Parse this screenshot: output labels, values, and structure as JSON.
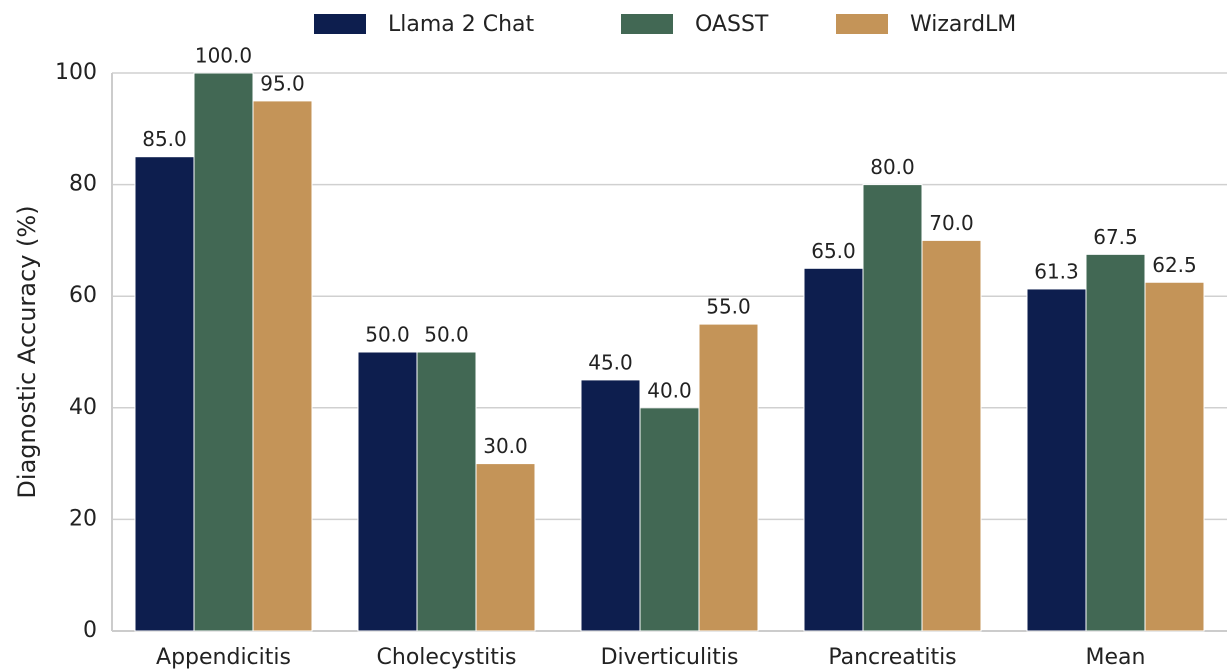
{
  "chart_data": {
    "type": "bar",
    "y_label": "Diagnostic Accuracy (%)",
    "categories": [
      "Appendicitis",
      "Cholecystitis",
      "Diverticulitis",
      "Pancreatitis",
      "Mean"
    ],
    "series": [
      {
        "name": "Llama 2 Chat",
        "color": "#0d1e4e",
        "values": [
          85,
          50,
          45,
          65,
          61.3
        ],
        "value_labels": [
          "85.0",
          "50.0",
          "45.0",
          "65.0",
          "61.3"
        ]
      },
      {
        "name": "OASST",
        "color": "#426854",
        "values": [
          100,
          50,
          40,
          80,
          67.5
        ],
        "value_labels": [
          "100.0",
          "50.0",
          "40.0",
          "80.0",
          "67.5"
        ]
      },
      {
        "name": "WizardLM",
        "color": "#c49458",
        "values": [
          95,
          30,
          55,
          70,
          62.5
        ],
        "value_labels": [
          "95.0",
          "30.0",
          "55.0",
          "70.0",
          "62.5"
        ]
      }
    ],
    "ylim": [
      0,
      100
    ],
    "yticks": [
      0,
      20,
      40,
      60,
      80,
      100
    ],
    "grid": true,
    "legend": "top"
  }
}
